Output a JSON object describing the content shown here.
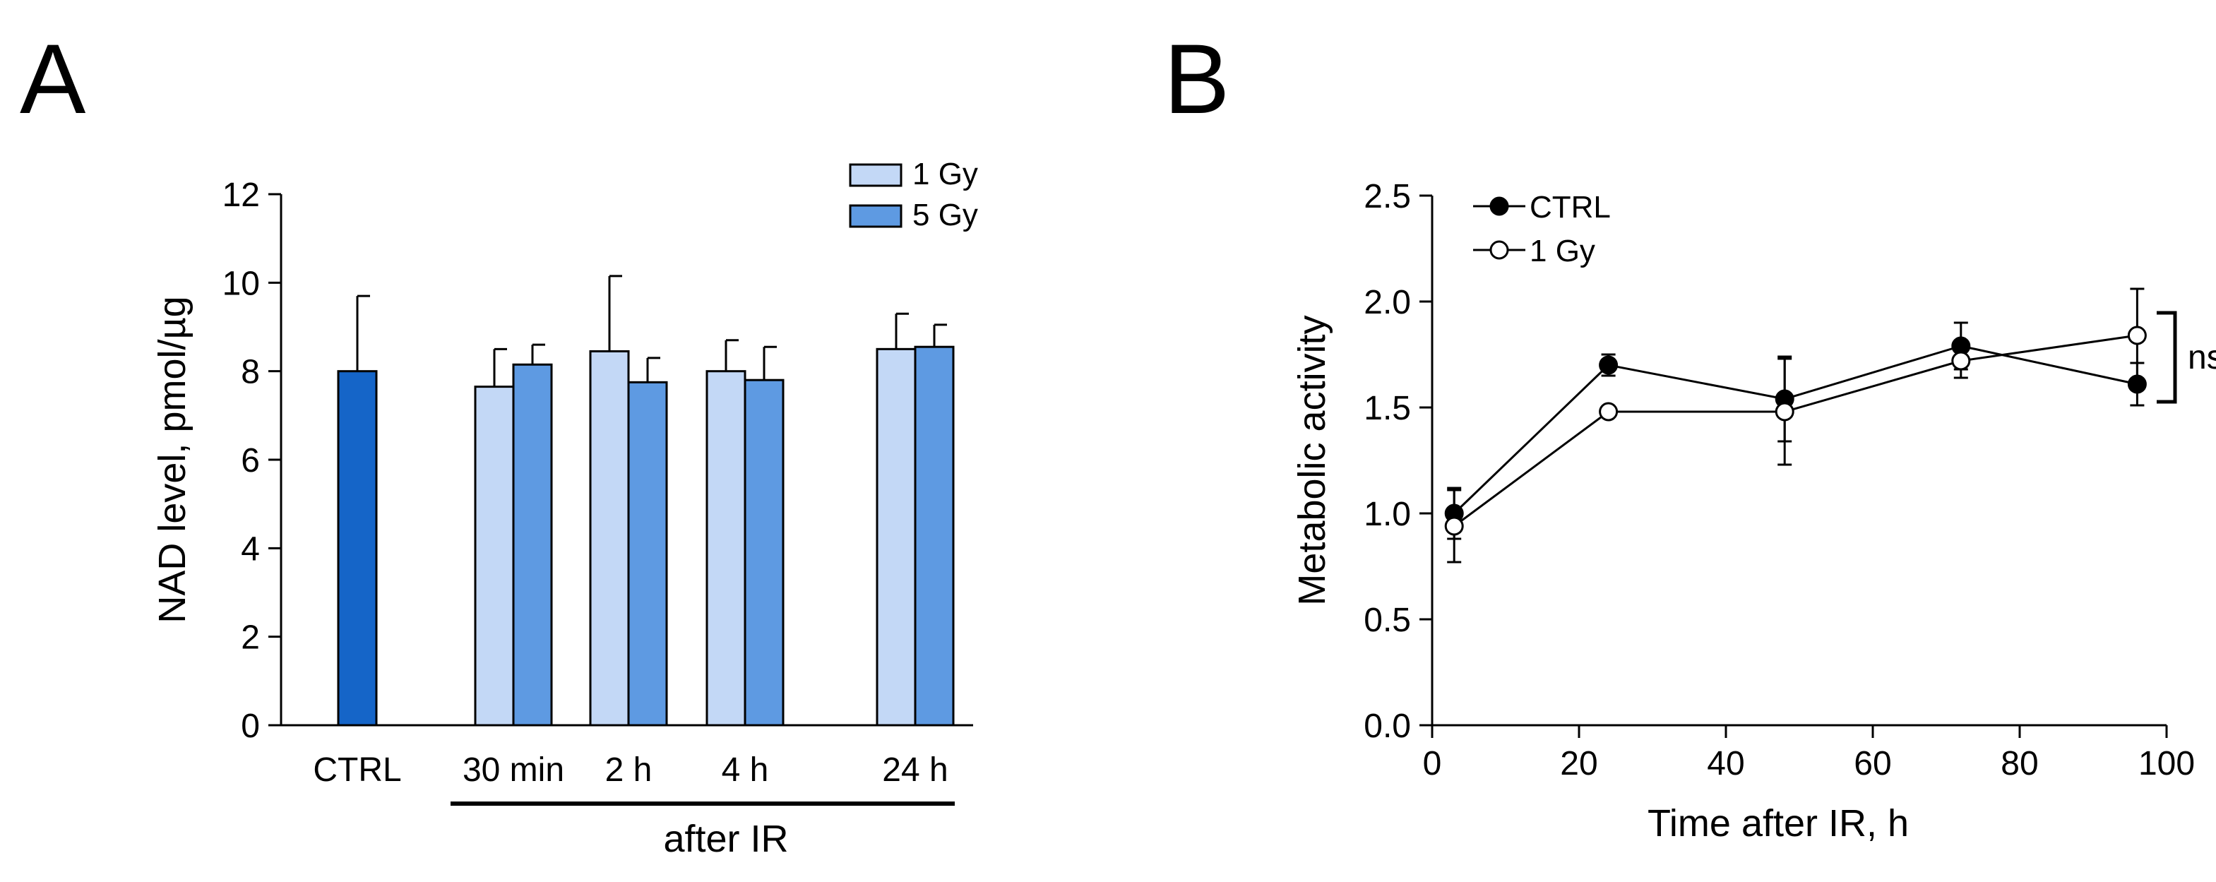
{
  "panels": {
    "a_label": "A",
    "b_label": "B"
  },
  "chart_data": [
    {
      "type": "bar",
      "panel": "A",
      "title": "",
      "xlabel": "",
      "ylabel": "NAD level, pmol/µg",
      "ylim": [
        0,
        12
      ],
      "yticks": [
        0,
        2,
        4,
        6,
        8,
        10,
        12
      ],
      "categories": [
        "CTRL",
        "30 min",
        "2 h",
        "4 h",
        "24 h"
      ],
      "group_label": "after IR",
      "control": {
        "name": "CTRL",
        "value": 8.0,
        "error": 1.7,
        "color": "#1565c8"
      },
      "series": [
        {
          "name": "1 Gy",
          "color": "#c3d8f6",
          "values": [
            null,
            7.65,
            8.45,
            8.0,
            8.5
          ],
          "errors": [
            null,
            0.85,
            1.7,
            0.7,
            0.8
          ]
        },
        {
          "name": "5 Gy",
          "color": "#5e9ae2",
          "values": [
            null,
            8.15,
            7.75,
            7.8,
            8.55
          ],
          "errors": [
            null,
            0.45,
            0.55,
            0.75,
            0.5
          ]
        }
      ],
      "legend_position": "top-right",
      "grid": false
    },
    {
      "type": "line",
      "panel": "B",
      "title": "",
      "xlabel": "Time after IR, h",
      "ylabel": "Metabolic activity",
      "xlim": [
        0,
        100
      ],
      "ylim": [
        0,
        2.5
      ],
      "xticks": [
        0,
        20,
        40,
        60,
        80,
        100
      ],
      "ytick_labels": [
        "0.0",
        "0.5",
        "1.0",
        "1.5",
        "2.0",
        "2.5"
      ],
      "series": [
        {
          "name": "CTRL",
          "marker": "filled-circle",
          "x": [
            3,
            24,
            48,
            72,
            96
          ],
          "y": [
            1.0,
            1.7,
            1.54,
            1.79,
            1.61
          ],
          "errors": [
            0.12,
            0.05,
            0.2,
            0.11,
            0.1
          ]
        },
        {
          "name": "1 Gy",
          "marker": "open-circle",
          "x": [
            3,
            24,
            48,
            72,
            96
          ],
          "y": [
            0.94,
            1.48,
            1.48,
            1.72,
            1.84
          ],
          "errors": [
            0.17,
            0.0,
            0.25,
            0.08,
            0.22
          ]
        }
      ],
      "annotation": "ns",
      "legend_position": "top-left",
      "grid": false
    }
  ]
}
